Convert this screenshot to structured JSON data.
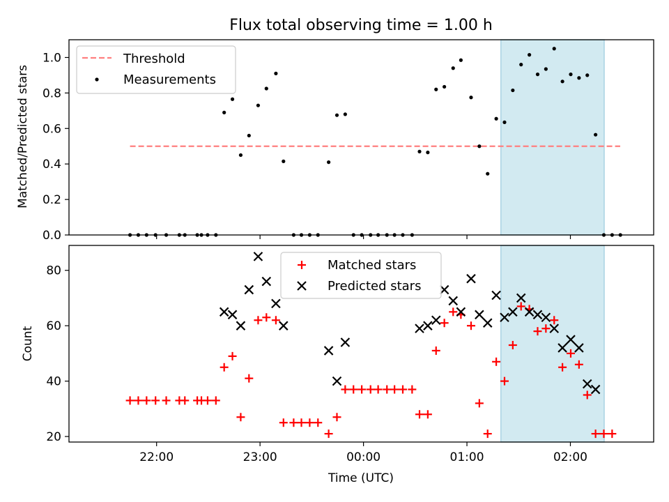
{
  "chart_data": [
    {
      "type": "scatter",
      "title": "Flux total observing time = 1.00 h",
      "xlabel": "",
      "ylabel": "Matched/Predicted stars",
      "ylim": [
        0,
        1.1
      ],
      "yticks": [
        "0.0",
        "0.2",
        "0.4",
        "0.6",
        "0.8",
        "1.0"
      ],
      "xlim_minutes": [
        -50.8,
        288.3
      ],
      "xticks": [
        {
          "t": 0,
          "label": "22:00"
        },
        {
          "t": 60,
          "label": "23:00"
        },
        {
          "t": 120,
          "label": "00:00"
        },
        {
          "t": 180,
          "label": "01:00"
        },
        {
          "t": 240,
          "label": "02:00"
        }
      ],
      "highlight_span": [
        199.7,
        259.6
      ],
      "highlight_color": "#add8e6",
      "legend_position": "upper left",
      "threshold": {
        "name": "Threshold",
        "value": 0.5,
        "x_range": [
          -15.4,
          268.9
        ],
        "color": "#ff7f7f"
      },
      "series": [
        {
          "name": "Measurements",
          "color": "#000000",
          "points": [
            [
              -15.4,
              0
            ],
            [
              -10.6,
              0
            ],
            [
              -5.8,
              0
            ],
            [
              -0.6,
              0
            ],
            [
              5.6,
              0
            ],
            [
              13.2,
              0
            ],
            [
              16.4,
              0
            ],
            [
              23.6,
              0
            ],
            [
              26.0,
              0
            ],
            [
              29.6,
              0
            ],
            [
              34.4,
              0
            ],
            [
              39.2,
              0.69
            ],
            [
              44.0,
              0.765
            ],
            [
              48.8,
              0.45
            ],
            [
              53.6,
              0.56
            ],
            [
              58.9,
              0.73
            ],
            [
              63.7,
              0.825
            ],
            [
              69.2,
              0.91
            ],
            [
              73.6,
              0.415
            ],
            [
              79.5,
              0
            ],
            [
              84.0,
              0
            ],
            [
              88.8,
              0
            ],
            [
              93.6,
              0
            ],
            [
              99.8,
              0.41
            ],
            [
              104.6,
              0.675
            ],
            [
              109.4,
              0.68
            ],
            [
              114.2,
              0
            ],
            [
              119.0,
              0
            ],
            [
              124.1,
              0
            ],
            [
              128.5,
              0
            ],
            [
              133.6,
              0
            ],
            [
              138.0,
              0
            ],
            [
              142.8,
              0
            ],
            [
              148.2,
              0
            ],
            [
              152.5,
              0.47
            ],
            [
              157.3,
              0.465
            ],
            [
              162.1,
              0.82
            ],
            [
              166.9,
              0.835
            ],
            [
              172.0,
              0.94
            ],
            [
              176.5,
              0.985
            ],
            [
              182.4,
              0.775
            ],
            [
              187.2,
              0.5
            ],
            [
              192.0,
              0.345
            ],
            [
              197.0,
              0.655
            ],
            [
              201.8,
              0.635
            ],
            [
              206.6,
              0.815
            ],
            [
              211.4,
              0.96
            ],
            [
              216.2,
              1.015
            ],
            [
              221.0,
              0.905
            ],
            [
              225.8,
              0.935
            ],
            [
              230.6,
              1.05
            ],
            [
              235.4,
              0.865
            ],
            [
              240.2,
              0.905
            ],
            [
              245.0,
              0.885
            ],
            [
              249.8,
              0.9
            ],
            [
              254.6,
              0.565
            ],
            [
              259.4,
              0
            ],
            [
              264.2,
              0
            ],
            [
              269.0,
              0
            ]
          ]
        }
      ]
    },
    {
      "type": "scatter",
      "title": "",
      "xlabel": "Time (UTC)",
      "ylabel": "Count",
      "ylim": [
        18,
        89
      ],
      "yticks": [
        "20",
        "40",
        "60",
        "80"
      ],
      "xlim_minutes": [
        -50.8,
        288.3
      ],
      "xticks": [
        {
          "t": 0,
          "label": "22:00"
        },
        {
          "t": 60,
          "label": "23:00"
        },
        {
          "t": 120,
          "label": "00:00"
        },
        {
          "t": 180,
          "label": "01:00"
        },
        {
          "t": 240,
          "label": "02:00"
        }
      ],
      "highlight_span": [
        199.7,
        259.6
      ],
      "highlight_color": "#add8e6",
      "legend_position": "upper center",
      "series": [
        {
          "name": "Matched stars",
          "color": "#ff0000",
          "marker": "+",
          "points": [
            [
              -15.4,
              33
            ],
            [
              -10.6,
              33
            ],
            [
              -5.8,
              33
            ],
            [
              -0.6,
              33
            ],
            [
              5.6,
              33
            ],
            [
              13.2,
              33
            ],
            [
              16.4,
              33
            ],
            [
              23.6,
              33
            ],
            [
              26.0,
              33
            ],
            [
              29.6,
              33
            ],
            [
              34.4,
              33
            ],
            [
              39.2,
              45
            ],
            [
              44.0,
              49
            ],
            [
              48.8,
              27
            ],
            [
              53.6,
              41
            ],
            [
              58.9,
              62
            ],
            [
              63.7,
              63
            ],
            [
              69.2,
              62
            ],
            [
              73.6,
              25
            ],
            [
              79.5,
              25
            ],
            [
              84.0,
              25
            ],
            [
              88.8,
              25
            ],
            [
              93.6,
              25
            ],
            [
              99.8,
              21
            ],
            [
              104.6,
              27
            ],
            [
              109.4,
              37
            ],
            [
              114.2,
              37
            ],
            [
              119.0,
              37
            ],
            [
              124.1,
              37
            ],
            [
              128.5,
              37
            ],
            [
              133.6,
              37
            ],
            [
              138.0,
              37
            ],
            [
              142.8,
              37
            ],
            [
              148.2,
              37
            ],
            [
              152.5,
              28
            ],
            [
              157.3,
              28
            ],
            [
              162.1,
              51
            ],
            [
              166.9,
              61
            ],
            [
              172.0,
              65
            ],
            [
              176.5,
              64
            ],
            [
              182.4,
              60
            ],
            [
              187.2,
              32
            ],
            [
              192.0,
              21
            ],
            [
              197.0,
              47
            ],
            [
              201.8,
              40
            ],
            [
              206.6,
              53
            ],
            [
              211.4,
              67
            ],
            [
              216.2,
              66
            ],
            [
              221.0,
              58
            ],
            [
              225.8,
              59
            ],
            [
              230.6,
              62
            ],
            [
              235.4,
              45
            ],
            [
              240.2,
              50
            ],
            [
              245.0,
              46
            ],
            [
              249.8,
              35
            ],
            [
              254.6,
              21
            ],
            [
              259.4,
              21
            ],
            [
              264.2,
              21
            ]
          ]
        },
        {
          "name": "Predicted stars",
          "color": "#000000",
          "marker": "x",
          "points": [
            [
              39.2,
              65
            ],
            [
              44.0,
              64
            ],
            [
              48.8,
              60
            ],
            [
              53.6,
              73
            ],
            [
              58.9,
              85
            ],
            [
              63.7,
              76
            ],
            [
              69.2,
              68
            ],
            [
              73.6,
              60
            ],
            [
              99.8,
              51
            ],
            [
              104.6,
              40
            ],
            [
              109.4,
              54
            ],
            [
              152.5,
              59
            ],
            [
              157.3,
              60
            ],
            [
              162.1,
              62
            ],
            [
              166.9,
              73
            ],
            [
              172.0,
              69
            ],
            [
              176.5,
              65
            ],
            [
              182.4,
              77
            ],
            [
              187.2,
              64
            ],
            [
              192.0,
              61
            ],
            [
              197.0,
              71
            ],
            [
              201.8,
              63
            ],
            [
              206.6,
              65
            ],
            [
              211.4,
              70
            ],
            [
              216.2,
              65
            ],
            [
              221.0,
              64
            ],
            [
              225.8,
              63
            ],
            [
              230.6,
              59
            ],
            [
              235.4,
              52
            ],
            [
              240.2,
              55
            ],
            [
              245.0,
              52
            ],
            [
              249.8,
              39
            ],
            [
              254.6,
              37
            ]
          ]
        }
      ]
    }
  ]
}
